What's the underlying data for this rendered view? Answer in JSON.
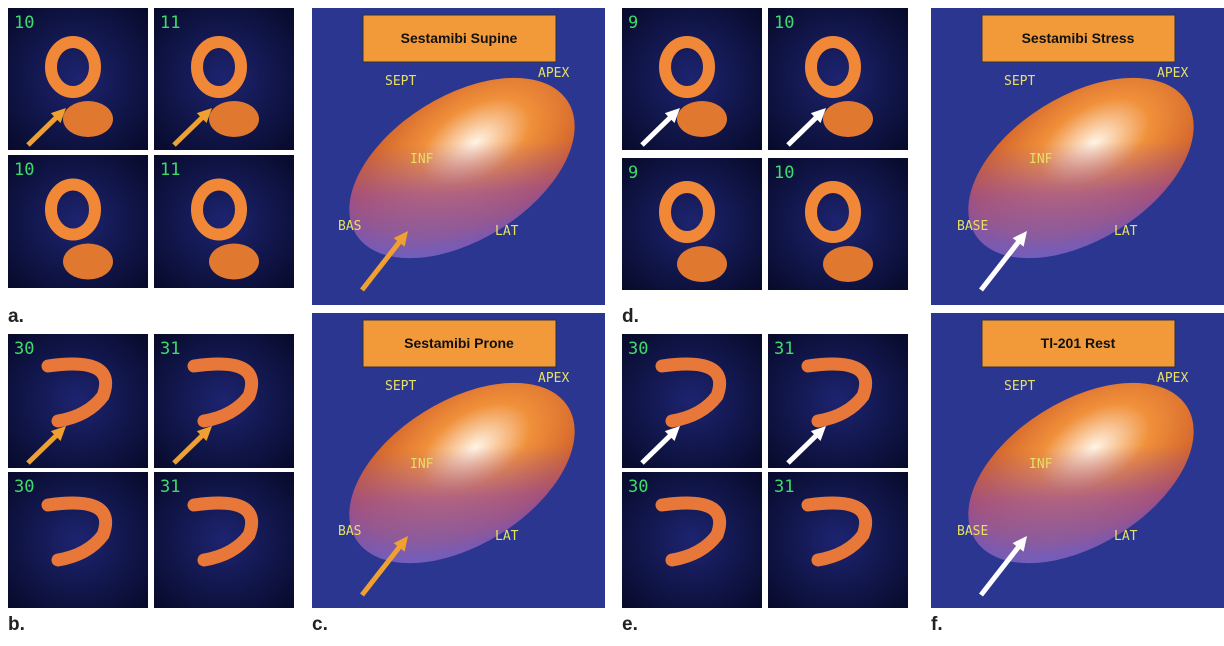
{
  "panels": [
    {
      "label": "a.",
      "rows": [
        [
          "10",
          "11"
        ],
        [
          "10",
          "11"
        ]
      ]
    },
    {
      "label": "b.",
      "rows": [
        [
          "30",
          "31"
        ],
        [
          "30",
          "31"
        ]
      ]
    },
    {
      "label": "c.",
      "maps": [
        {
          "title": "Sestamibi Supine",
          "labels": [
            "SEPT",
            "APEX",
            "INF",
            "BAS",
            "LAT"
          ]
        },
        {
          "title": "Sestamibi Prone",
          "labels": [
            "SEPT",
            "APEX",
            "INF",
            "BAS",
            "LAT"
          ]
        }
      ]
    },
    {
      "label": "d.",
      "rows": [
        [
          "9",
          "10"
        ],
        [
          "9",
          "10"
        ]
      ]
    },
    {
      "label": "e.",
      "rows": [
        [
          "30",
          "31"
        ],
        [
          "30",
          "31"
        ]
      ]
    },
    {
      "label": "f.",
      "maps": [
        {
          "title": "Sestamibi Stress",
          "labels": [
            "SEPT",
            "APEX",
            "INF",
            "BASE",
            "LAT"
          ]
        },
        {
          "title": "Tl-201 Rest",
          "labels": [
            "SEPT",
            "APEX",
            "INF",
            "BASE",
            "LAT"
          ]
        }
      ]
    }
  ]
}
